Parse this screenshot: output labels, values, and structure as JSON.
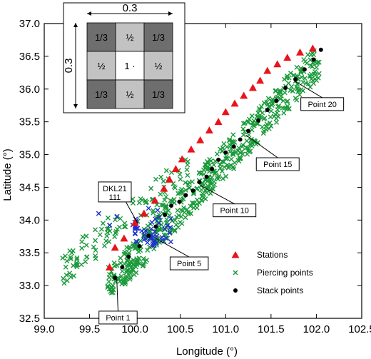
{
  "chart_data": {
    "type": "scatter",
    "xlabel": "Longitude (°)",
    "ylabel": "Latitude (°)",
    "xlim": [
      99.0,
      102.5
    ],
    "ylim": [
      32.5,
      37.0
    ],
    "xticks": [
      "99.0",
      "99.5",
      "100.0",
      "100.5",
      "101.0",
      "101.5",
      "102.0",
      "102.5"
    ],
    "yticks": [
      "32.5",
      "33.0",
      "33.5",
      "34.0",
      "34.5",
      "35.0",
      "35.5",
      "36.0",
      "36.5",
      "37.0"
    ],
    "colors": {
      "stations": "#e8141c",
      "piercing": "#1a9a3a",
      "piercing_blue": "#1f2fd0",
      "stack": "#000000"
    },
    "series": [
      {
        "name": "Stations",
        "marker": "triangle",
        "color": "#e8141c",
        "points": [
          [
            99.72,
            33.28
          ],
          [
            99.78,
            33.58
          ],
          [
            99.88,
            33.72
          ],
          [
            100.0,
            33.96
          ],
          [
            100.1,
            34.1
          ],
          [
            100.22,
            34.3
          ],
          [
            100.32,
            34.48
          ],
          [
            100.38,
            34.62
          ],
          [
            100.45,
            34.78
          ],
          [
            100.52,
            34.93
          ],
          [
            100.62,
            35.08
          ],
          [
            100.72,
            35.22
          ],
          [
            100.82,
            35.37
          ],
          [
            100.92,
            35.5
          ],
          [
            101.0,
            35.65
          ],
          [
            101.1,
            35.78
          ],
          [
            101.2,
            35.9
          ],
          [
            101.3,
            36.02
          ],
          [
            101.38,
            36.13
          ],
          [
            101.46,
            36.28
          ],
          [
            101.57,
            36.38
          ],
          [
            101.68,
            36.48
          ],
          [
            101.82,
            36.56
          ],
          [
            101.96,
            36.62
          ]
        ]
      },
      {
        "name": "Piercing points",
        "marker": "x",
        "color": "#1a9a3a"
      },
      {
        "name": "Stack points",
        "marker": "dot",
        "color": "#000000",
        "points": [
          [
            99.78,
            33.12
          ],
          [
            99.86,
            33.28
          ],
          [
            99.93,
            33.44
          ],
          [
            100.05,
            33.6
          ],
          [
            100.15,
            33.76
          ],
          [
            100.23,
            33.9
          ],
          [
            100.33,
            34.08
          ],
          [
            100.4,
            34.22
          ],
          [
            100.49,
            34.28
          ],
          [
            100.56,
            34.38
          ],
          [
            100.64,
            34.45
          ],
          [
            100.71,
            34.58
          ],
          [
            100.79,
            34.66
          ],
          [
            100.85,
            34.78
          ],
          [
            100.92,
            34.92
          ],
          [
            101.0,
            35.03
          ],
          [
            101.09,
            35.12
          ],
          [
            101.16,
            35.23
          ],
          [
            101.25,
            35.36
          ],
          [
            101.36,
            35.52
          ],
          [
            101.46,
            35.68
          ],
          [
            101.56,
            35.82
          ],
          [
            101.66,
            36.02
          ],
          [
            101.77,
            36.15
          ],
          [
            101.87,
            36.3
          ],
          [
            101.97,
            36.45
          ],
          [
            102.05,
            36.6
          ]
        ]
      }
    ],
    "annotations": [
      {
        "text": "Point 1",
        "target": [
          99.8,
          33.1
        ]
      },
      {
        "text": "Point 5",
        "target": [
          100.23,
          33.72
        ]
      },
      {
        "text": "Point 10",
        "target": [
          100.72,
          34.53
        ]
      },
      {
        "text": "Point 15",
        "target": [
          101.22,
          35.3
        ]
      },
      {
        "text": "Point 20",
        "target": [
          101.75,
          36.13
        ]
      },
      {
        "text": "DKL21",
        "text2": "111",
        "target": [
          100.03,
          33.95
        ]
      }
    ],
    "legend": {
      "position": "bottom-right",
      "items": [
        "Stations",
        "Piercing points",
        "Stack points"
      ]
    },
    "grid": false,
    "inset": {
      "position": "top-left",
      "width_label": "0.3",
      "height_label": "0.3",
      "cells": [
        "1/3",
        "½",
        "1/3",
        "½",
        "1 ·",
        "½",
        "1/3",
        "½",
        "1/3"
      ]
    }
  }
}
